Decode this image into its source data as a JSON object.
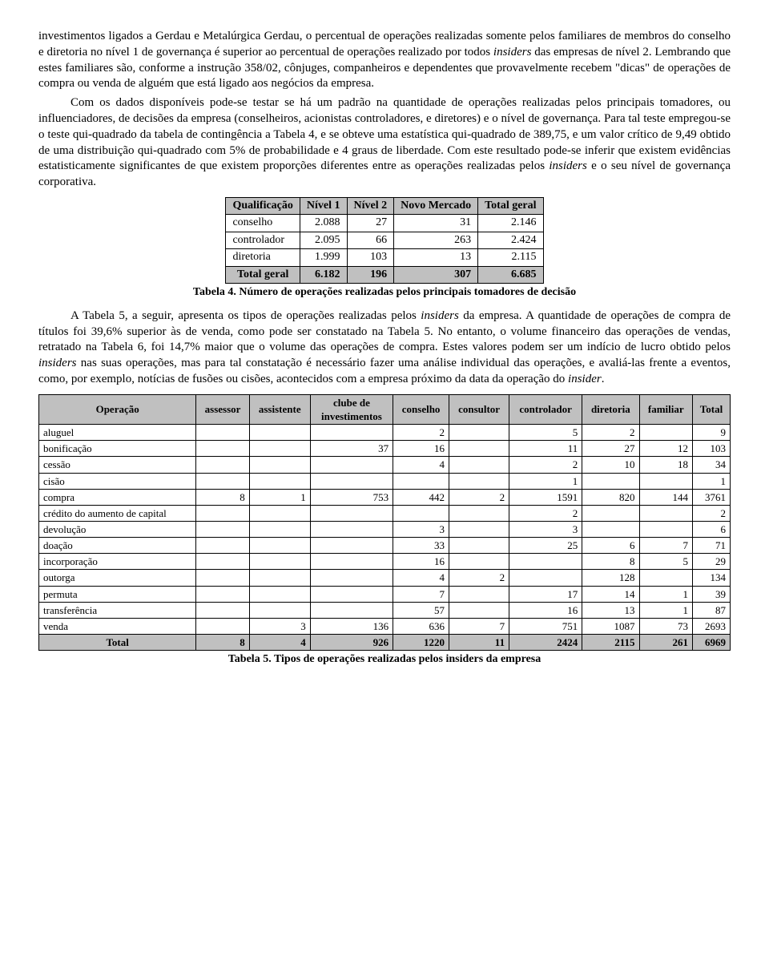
{
  "para1": "investimentos ligados a Gerdau e Metalúrgica Gerdau, o percentual de operações realizadas somente pelos familiares de membros do conselho e diretoria no nível 1 de governança é superior ao percentual de operações realizado por todos <i>insiders</i> das empresas de nível 2. Lembrando que estes familiares são, conforme a instrução 358/02, cônjuges, companheiros e dependentes que provavelmente recebem \"dicas\" de operações de compra ou venda de alguém que está ligado aos negócios da empresa.",
  "para2": "Com os dados disponíveis pode-se testar se há um padrão na quantidade de operações realizadas pelos principais tomadores, ou influenciadores, de decisões da empresa (conselheiros, acionistas controladores, e diretores) e o nível de governança. Para tal teste empregou-se o teste qui-quadrado da tabela de contingência a Tabela 4, e se obteve uma estatística qui-quadrado de 389,75, e um valor crítico de 9,49 obtido de uma distribuição qui-quadrado com 5% de probabilidade e 4 graus de liberdade. Com este resultado pode-se inferir que existem evidências estatisticamente significantes de que existem proporções diferentes entre as operações realizadas pelos <i>insiders</i> e o seu nível de governança corporativa.",
  "table4": {
    "headers": [
      "Qualificação",
      "Nível 1",
      "Nível 2",
      "Novo Mercado",
      "Total geral"
    ],
    "rows": [
      [
        "conselho",
        "2.088",
        "27",
        "31",
        "2.146"
      ],
      [
        "controlador",
        "2.095",
        "66",
        "263",
        "2.424"
      ],
      [
        "diretoria",
        "1.999",
        "103",
        "13",
        "2.115"
      ]
    ],
    "total": [
      "Total geral",
      "6.182",
      "196",
      "307",
      "6.685"
    ],
    "caption": "Tabela 4. Número de operações realizadas pelos principais tomadores de decisão"
  },
  "para3": "A Tabela 5, a seguir, apresenta os tipos de operações realizadas pelos <i>insiders</i> da empresa. A quantidade de operações de compra de títulos foi 39,6% superior às de venda, como pode ser constatado na Tabela 5. No entanto, o volume financeiro das operações de vendas, retratado na Tabela 6, foi 14,7% maior que o volume das operações de compra. Estes valores podem ser um indício de lucro obtido pelos <i>insiders</i> nas suas operações, mas para tal constatação é necessário fazer uma análise individual das operações, e avaliá-las frente a eventos, como, por exemplo, notícias de fusões ou cisões, acontecidos com a empresa próximo da data da operação do <i>insider</i>.",
  "table5": {
    "headers": [
      "Operação",
      "assessor",
      "assistente",
      "clube de investimentos",
      "conselho",
      "consultor",
      "controlador",
      "diretoria",
      "familiar",
      "Total"
    ],
    "rows": [
      [
        "aluguel",
        "",
        "",
        "",
        "2",
        "",
        "5",
        "2",
        "",
        "9"
      ],
      [
        "bonificação",
        "",
        "",
        "37",
        "16",
        "",
        "11",
        "27",
        "12",
        "103"
      ],
      [
        "cessão",
        "",
        "",
        "",
        "4",
        "",
        "2",
        "10",
        "18",
        "34"
      ],
      [
        "cisão",
        "",
        "",
        "",
        "",
        "",
        "1",
        "",
        "",
        "1"
      ],
      [
        "compra",
        "8",
        "1",
        "753",
        "442",
        "2",
        "1591",
        "820",
        "144",
        "3761"
      ],
      [
        "crédito do aumento de capital",
        "",
        "",
        "",
        "",
        "",
        "2",
        "",
        "",
        "2"
      ],
      [
        "devolução",
        "",
        "",
        "",
        "3",
        "",
        "3",
        "",
        "",
        "6"
      ],
      [
        "doação",
        "",
        "",
        "",
        "33",
        "",
        "25",
        "6",
        "7",
        "71"
      ],
      [
        "incorporação",
        "",
        "",
        "",
        "16",
        "",
        "",
        "8",
        "5",
        "29"
      ],
      [
        "outorga",
        "",
        "",
        "",
        "4",
        "2",
        "",
        "128",
        "",
        "134"
      ],
      [
        "permuta",
        "",
        "",
        "",
        "7",
        "",
        "17",
        "14",
        "1",
        "39"
      ],
      [
        "transferência",
        "",
        "",
        "",
        "57",
        "",
        "16",
        "13",
        "1",
        "87"
      ],
      [
        "venda",
        "",
        "3",
        "136",
        "636",
        "7",
        "751",
        "1087",
        "73",
        "2693"
      ]
    ],
    "total": [
      "Total",
      "8",
      "4",
      "926",
      "1220",
      "11",
      "2424",
      "2115",
      "261",
      "6969"
    ],
    "caption": "Tabela 5. Tipos de operações realizadas pelos insiders da empresa"
  }
}
